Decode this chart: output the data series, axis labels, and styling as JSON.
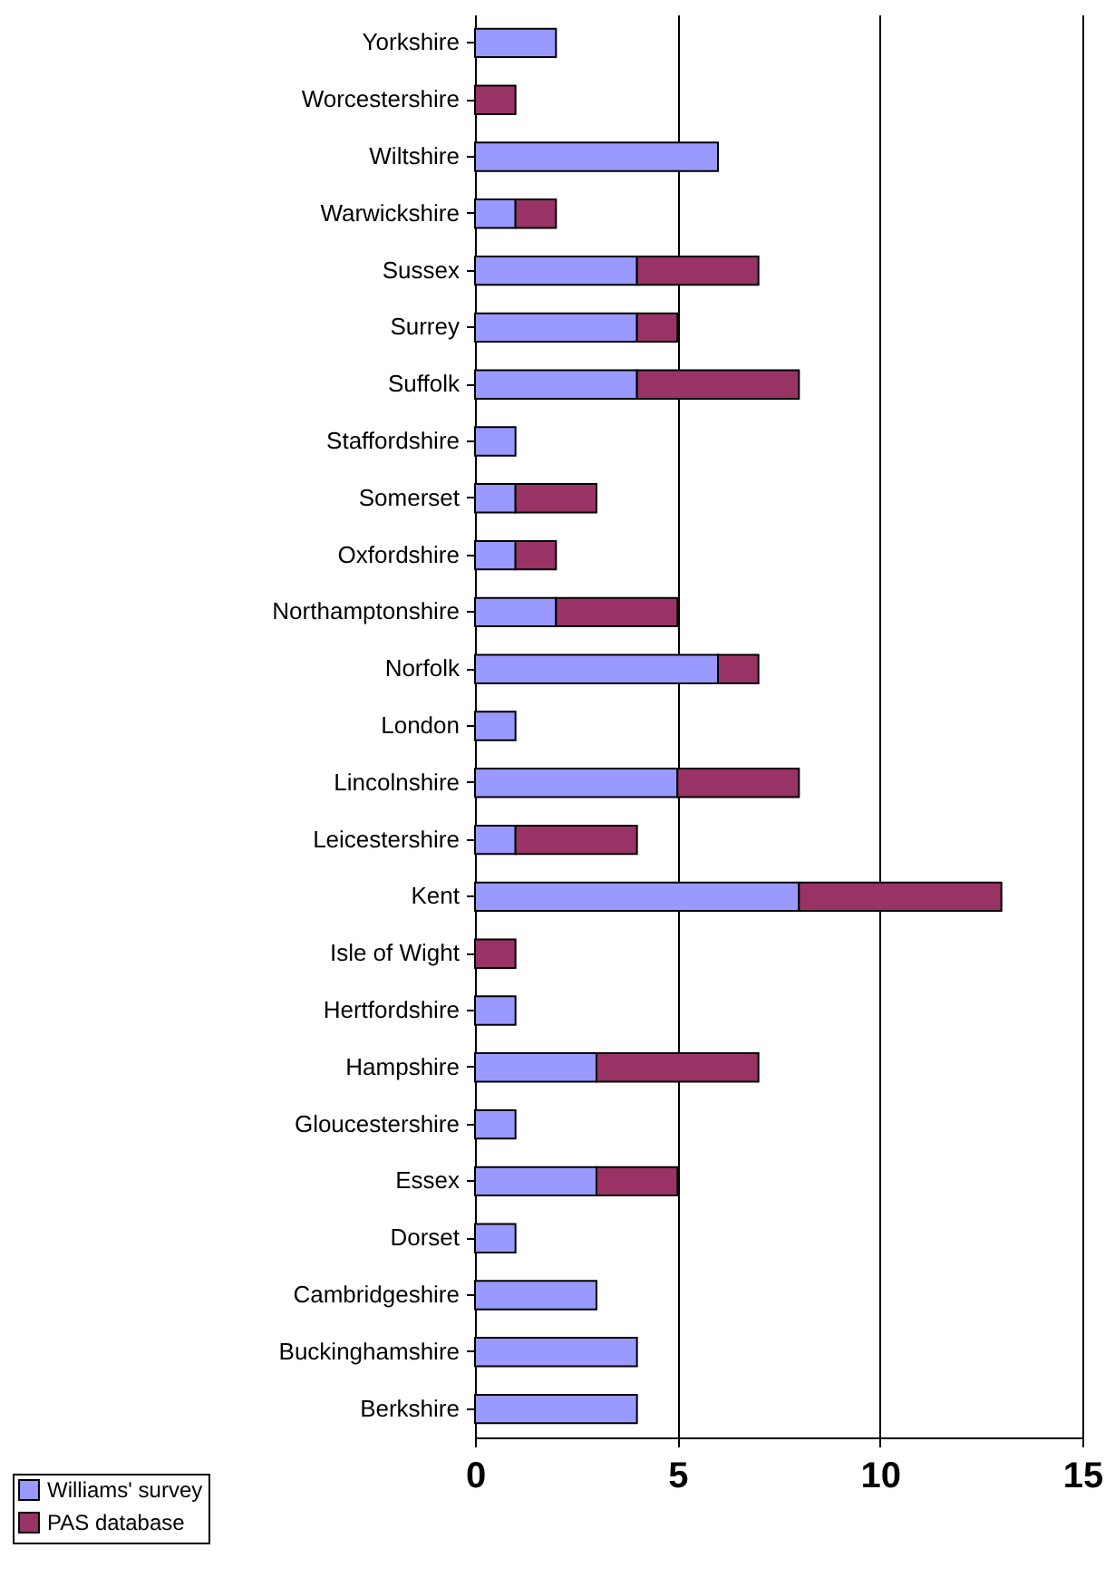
{
  "chart_data": {
    "type": "bar",
    "orientation": "horizontal",
    "stacked": true,
    "categories": [
      "Yorkshire",
      "Worcestershire",
      "Wiltshire",
      "Warwickshire",
      "Sussex",
      "Surrey",
      "Suffolk",
      "Staffordshire",
      "Somerset",
      "Oxfordshire",
      "Northamptonshire",
      "Norfolk",
      "London",
      "Lincolnshire",
      "Leicestershire",
      "Kent",
      "Isle of Wight",
      "Hertfordshire",
      "Hampshire",
      "Gloucestershire",
      "Essex",
      "Dorset",
      "Cambridgeshire",
      "Buckinghamshire",
      "Berkshire"
    ],
    "series": [
      {
        "name": "Williams' survey",
        "color": "#9999ff",
        "values": [
          2,
          null,
          6,
          1,
          4,
          4,
          4,
          1,
          1,
          1,
          2,
          6,
          1,
          5,
          1,
          8,
          null,
          1,
          3,
          1,
          3,
          1,
          3,
          4,
          4
        ]
      },
      {
        "name": "PAS database",
        "color": "#993366",
        "values": [
          null,
          1,
          null,
          1,
          3,
          1,
          4,
          null,
          2,
          1,
          3,
          1,
          null,
          3,
          3,
          5,
          1,
          null,
          4,
          null,
          2,
          null,
          null,
          null,
          null
        ]
      }
    ],
    "xlim": [
      0,
      15
    ],
    "xticks": [
      0,
      5,
      10,
      15
    ],
    "grid": "x",
    "legend": "bottom left"
  }
}
